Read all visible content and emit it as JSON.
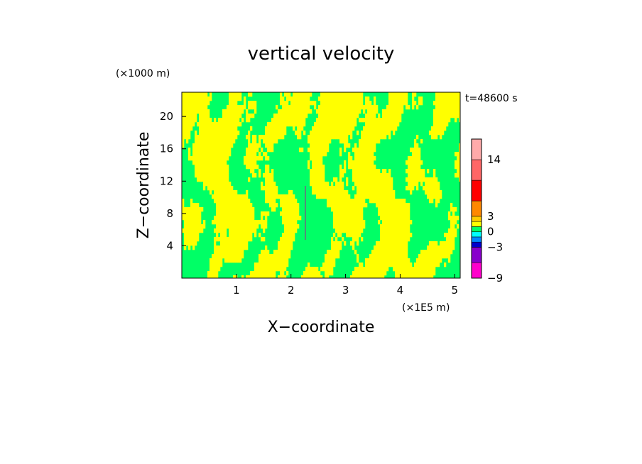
{
  "chart_data": {
    "type": "heatmap",
    "title": "vertical velocity",
    "xlabel": "X−coordinate",
    "ylabel": "Z−coordinate",
    "x_unit": "(×1E5 m)",
    "y_unit": "(×1000 m)",
    "time_label": "t=48600 s",
    "xlim": [
      0,
      5.1
    ],
    "ylim": [
      0,
      23
    ],
    "x_ticks": [
      "1",
      "2",
      "3",
      "4",
      "5"
    ],
    "x_tick_values": [
      1,
      2,
      3,
      4,
      5
    ],
    "y_ticks": [
      "4",
      "8",
      "12",
      "16",
      "20"
    ],
    "y_tick_values": [
      4,
      8,
      12,
      16,
      20
    ],
    "field_colors": {
      "positive": "#ffff00",
      "negative": "#00ff66"
    },
    "colorbar": {
      "tick_labels": [
        "14",
        "3",
        "0",
        "−3",
        "−9"
      ],
      "levels": [
        -9,
        -6,
        -3,
        -2,
        -1,
        0,
        1,
        2,
        3,
        6,
        10,
        14,
        18
      ],
      "colors": [
        "#ff00cc",
        "#8800cc",
        "#0000cc",
        "#0088ff",
        "#00ffff",
        "#00ff66",
        "#ffff00",
        "#ffcc00",
        "#ff8800",
        "#ff0000",
        "#ff6666",
        "#ffaaaa"
      ]
    }
  }
}
